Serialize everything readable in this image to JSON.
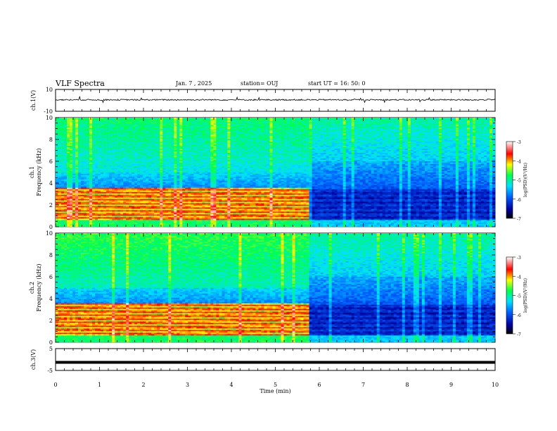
{
  "header": {
    "title": "VLF Spectra",
    "date": "Jan. 7 , 2025",
    "station": "station= OUJ",
    "start": "start UT =  16: 50: 0"
  },
  "colors": {
    "trace": "#000000",
    "colormap": [
      "#000040",
      "#0000ff",
      "#00d8ff",
      "#00ff60",
      "#ffff00",
      "#ff0000",
      "#ffffff"
    ]
  },
  "chart_data": [
    {
      "type": "line",
      "ylabel": "ch.1(V)",
      "ylim": [
        -10,
        10
      ],
      "yticks": [
        "10",
        "-10"
      ],
      "xlim": [
        0,
        10
      ],
      "series": [
        {
          "values_description_free": true,
          "baseline": 0.5,
          "noise_amplitude": 1.2
        }
      ]
    },
    {
      "type": "heatmap",
      "ylabel": "ch.1 Frequency (kHz)",
      "ylim": [
        0,
        10
      ],
      "yticks": [
        "0",
        "2",
        "4",
        "6",
        "8",
        "10"
      ],
      "xlim": [
        0,
        10
      ],
      "colorbar": {
        "label": "log(PSD)(V²/Hz)",
        "range": [
          -7,
          -3
        ],
        "ticks": [
          "-3",
          "-4",
          "-5",
          "-6",
          "-7"
        ]
      },
      "regime_change_min": 5.8,
      "notes": "strong bands 1.5-3.5 kHz before 5.8 min; quiet (dark) 1-3 kHz after"
    },
    {
      "type": "heatmap",
      "ylabel": "ch.2 Frequency (kHz)",
      "ylim": [
        0,
        10
      ],
      "yticks": [
        "0",
        "2",
        "4",
        "6",
        "8",
        "10"
      ],
      "xlim": [
        0,
        10
      ],
      "colorbar": {
        "label": "log(PSD)(V²/Hz)",
        "range": [
          -7,
          -3
        ],
        "ticks": [
          "-3",
          "-4",
          "-5",
          "-6",
          "-7"
        ]
      },
      "regime_change_min": 5.8
    },
    {
      "type": "line",
      "ylabel": "ch.3(V)",
      "ylim": [
        -5,
        5
      ],
      "yticks": [
        "5",
        "-5"
      ],
      "xlim": [
        0,
        10
      ],
      "series": [
        {
          "constant": -1.3
        }
      ],
      "xlabel": "Time (min)",
      "xticks": [
        "0",
        "1",
        "2",
        "3",
        "4",
        "5",
        "6",
        "7",
        "8",
        "9",
        "10"
      ]
    }
  ]
}
